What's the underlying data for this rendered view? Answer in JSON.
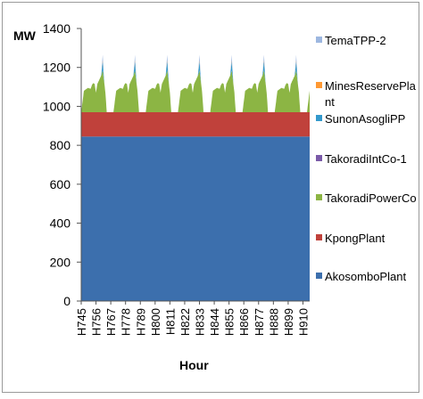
{
  "chart_data": {
    "type": "area",
    "stacked": true,
    "ylabel": "MW",
    "xlabel": "Hour",
    "ylim": [
      0,
      1400
    ],
    "y_ticks": [
      0,
      200,
      400,
      600,
      800,
      1000,
      1200,
      1400
    ],
    "x_tick_labels": [
      "H745",
      "H756",
      "H767",
      "H778",
      "H789",
      "H800",
      "H811",
      "H822",
      "H833",
      "H844",
      "H855",
      "H866",
      "H877",
      "H888",
      "H899",
      "H910"
    ],
    "x_range": [
      745,
      915
    ],
    "legend_position": "right",
    "series": [
      {
        "name": "TemaTPP-2",
        "color": "#9db7e0"
      },
      {
        "name": "MinesReservePlant",
        "color": "#ff9933"
      },
      {
        "name": "SunonAsogliPP",
        "color": "#3399cc"
      },
      {
        "name": "TakoradiIntCo-1",
        "color": "#7a5aa8"
      },
      {
        "name": "TakoradiPowerCo",
        "color": "#8cb544",
        "values_note": "daily cycling",
        "daily_min": 0,
        "daily_max": 215
      },
      {
        "name": "KpongPlant",
        "color": "#c0413b",
        "value": 125
      },
      {
        "name": "AkosomboPlant",
        "color": "#3c6fad",
        "value": 845
      }
    ],
    "legend_entries": [
      {
        "label": "TemaTPP-2",
        "color": "#9db7e0"
      },
      {
        "label": "MinesReservePla nt",
        "color": "#ff9933"
      },
      {
        "label": "SunonAsogliPP",
        "color": "#3399cc"
      },
      {
        "label": "TakoradiIntCo-1",
        "color": "#7a5aa8"
      },
      {
        "label": "TakoradiPowerCo",
        "color": "#8cb544"
      },
      {
        "label": "KpongPlant",
        "color": "#c0413b"
      },
      {
        "label": "AkosomboPlant",
        "color": "#3c6fad"
      }
    ]
  }
}
